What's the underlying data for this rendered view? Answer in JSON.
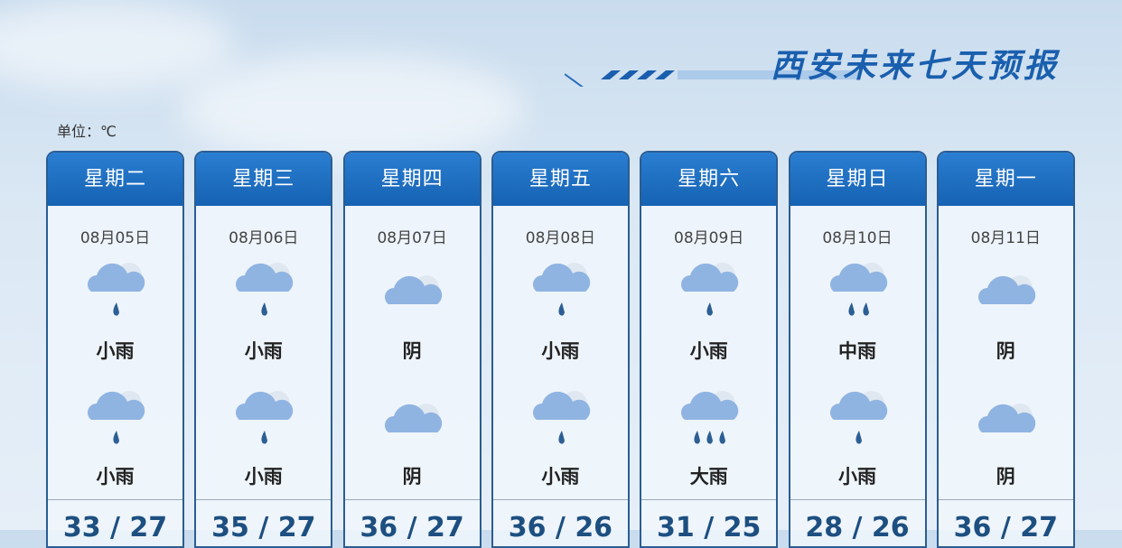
{
  "title": "西安未来七天预报",
  "unit": "单位：℃",
  "days": [
    {
      "weekday": "星期二",
      "date": "08月05日",
      "day_weather": "小雨",
      "night_weather": "小雨",
      "temp": "33 / 27"
    },
    {
      "weekday": "星期三",
      "date": "08月06日",
      "day_weather": "小雨",
      "night_weather": "小雨",
      "temp": "35 / 27"
    },
    {
      "weekday": "星期四",
      "date": "08月07日",
      "day_weather": "阴",
      "night_weather": "阴",
      "temp": "36 / 27"
    },
    {
      "weekday": "星期五",
      "date": "08月08日",
      "day_weather": "小雨",
      "night_weather": "小雨",
      "temp": "36 / 26"
    },
    {
      "weekday": "星期六",
      "date": "08月09日",
      "day_weather": "小雨",
      "night_weather": "大雨",
      "temp": "31 / 25"
    },
    {
      "weekday": "星期日",
      "date": "08月10日",
      "day_weather": "中雨",
      "night_weather": "小雨",
      "temp": "28 / 26"
    },
    {
      "weekday": "星期一",
      "date": "08月11日",
      "day_weather": "阴",
      "night_weather": "阴",
      "temp": "36 / 27"
    }
  ],
  "colors": {
    "header": "#1a6cc0",
    "title": "#1a5fae",
    "temp": "#1d4f80"
  }
}
